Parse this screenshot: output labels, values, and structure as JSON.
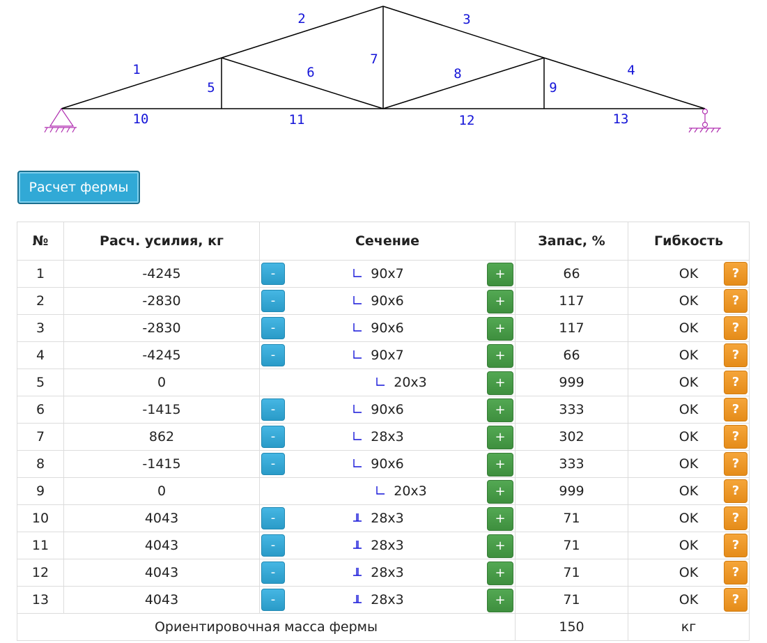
{
  "truss": {
    "member_labels": [
      "1",
      "2",
      "3",
      "4",
      "5",
      "6",
      "7",
      "8",
      "9",
      "10",
      "11",
      "12",
      "13"
    ],
    "line_color": "#000000",
    "label_color": "#1414d8",
    "support_color": "#b02fb0"
  },
  "actions": {
    "calc_label": "Расчет фермы"
  },
  "table": {
    "headers": [
      "№",
      "Расч. усилия, кг",
      "Сечение",
      "Запас, %",
      "Гибкость"
    ],
    "minus_label": "-",
    "plus_label": "+",
    "help_label": "?",
    "rows": [
      {
        "n": "1",
        "force": "-4245",
        "section": "90x7",
        "icon": "angle-pair-icon",
        "minus": true,
        "reserve": "66",
        "flex": "OK"
      },
      {
        "n": "2",
        "force": "-2830",
        "section": "90x6",
        "icon": "angle-pair-icon",
        "minus": true,
        "reserve": "117",
        "flex": "OK"
      },
      {
        "n": "3",
        "force": "-2830",
        "section": "90x6",
        "icon": "angle-pair-icon",
        "minus": true,
        "reserve": "117",
        "flex": "OK"
      },
      {
        "n": "4",
        "force": "-4245",
        "section": "90x7",
        "icon": "angle-pair-icon",
        "minus": true,
        "reserve": "66",
        "flex": "OK"
      },
      {
        "n": "5",
        "force": "0",
        "section": "20x3",
        "icon": "angle-single-icon",
        "minus": false,
        "reserve": "999",
        "flex": "OK"
      },
      {
        "n": "6",
        "force": "-1415",
        "section": "90x6",
        "icon": "angle-pair-icon",
        "minus": true,
        "reserve": "333",
        "flex": "OK"
      },
      {
        "n": "7",
        "force": "862",
        "section": "28x3",
        "icon": "angle-pair-icon",
        "minus": true,
        "reserve": "302",
        "flex": "OK"
      },
      {
        "n": "8",
        "force": "-1415",
        "section": "90x6",
        "icon": "angle-pair-icon",
        "minus": true,
        "reserve": "333",
        "flex": "OK"
      },
      {
        "n": "9",
        "force": "0",
        "section": "20x3",
        "icon": "angle-single-icon",
        "minus": false,
        "reserve": "999",
        "flex": "OK"
      },
      {
        "n": "10",
        "force": "4043",
        "section": "28x3",
        "icon": "double-angle-tee-icon",
        "minus": true,
        "reserve": "71",
        "flex": "OK"
      },
      {
        "n": "11",
        "force": "4043",
        "section": "28x3",
        "icon": "double-angle-tee-icon",
        "minus": true,
        "reserve": "71",
        "flex": "OK"
      },
      {
        "n": "12",
        "force": "4043",
        "section": "28x3",
        "icon": "double-angle-tee-icon",
        "minus": true,
        "reserve": "71",
        "flex": "OK"
      },
      {
        "n": "13",
        "force": "4043",
        "section": "28x3",
        "icon": "double-angle-tee-icon",
        "minus": true,
        "reserve": "71",
        "flex": "OK"
      }
    ],
    "footer": {
      "label": "Ориентировочная масса фермы",
      "value": "150",
      "unit": "кг"
    }
  }
}
